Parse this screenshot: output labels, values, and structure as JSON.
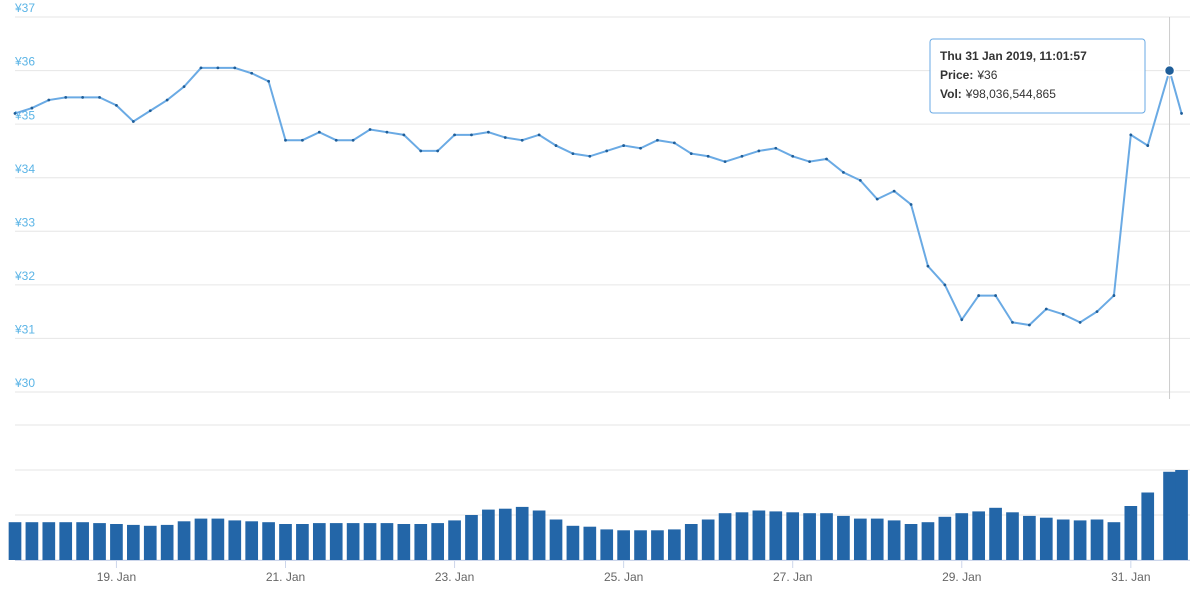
{
  "chart_data": [
    {
      "type": "line",
      "x": [
        17.8,
        18.0,
        18.2,
        18.4,
        18.6,
        18.8,
        19.0,
        19.2,
        19.4,
        19.6,
        19.8,
        20.0,
        20.2,
        20.4,
        20.6,
        20.8,
        21.0,
        21.2,
        21.4,
        21.6,
        21.8,
        22.0,
        22.2,
        22.4,
        22.6,
        22.8,
        23.0,
        23.2,
        23.4,
        23.6,
        23.8,
        24.0,
        24.2,
        24.4,
        24.6,
        24.8,
        25.0,
        25.2,
        25.4,
        25.6,
        25.8,
        26.0,
        26.2,
        26.4,
        26.6,
        26.8,
        27.0,
        27.2,
        27.4,
        27.6,
        27.8,
        28.0,
        28.2,
        28.4,
        28.6,
        28.8,
        29.0,
        29.2,
        29.4,
        29.6,
        29.8,
        30.0,
        30.2,
        30.4,
        30.6,
        30.8,
        31.0,
        31.2,
        31.458,
        31.6
      ],
      "values": [
        35.2,
        35.3,
        35.45,
        35.5,
        35.5,
        35.5,
        35.35,
        35.05,
        35.25,
        35.45,
        35.7,
        36.05,
        36.05,
        36.05,
        35.95,
        35.8,
        34.7,
        34.7,
        34.85,
        34.7,
        34.7,
        34.9,
        34.85,
        34.8,
        34.5,
        34.5,
        34.8,
        34.8,
        34.85,
        34.75,
        34.7,
        34.8,
        34.6,
        34.45,
        34.4,
        34.5,
        34.6,
        34.55,
        34.7,
        34.65,
        34.45,
        34.4,
        34.3,
        34.4,
        34.5,
        34.55,
        34.4,
        34.3,
        34.35,
        34.1,
        33.95,
        33.6,
        33.75,
        33.5,
        32.35,
        32.0,
        31.35,
        31.8,
        31.8,
        31.3,
        31.25,
        31.55,
        31.45,
        31.3,
        31.5,
        31.8,
        34.8,
        34.6,
        36,
        35.2
      ],
      "color": "#6aaae4",
      "marker_color": "#1f5e99",
      "xlim": [
        17.8,
        31.7
      ],
      "ylim": [
        30,
        37
      ],
      "yticks": [
        {
          "value": 30,
          "label": "¥30"
        },
        {
          "value": 31,
          "label": "¥31"
        },
        {
          "value": 32,
          "label": "¥32"
        },
        {
          "value": 33,
          "label": "¥33"
        },
        {
          "value": 34,
          "label": "¥34"
        },
        {
          "value": 35,
          "label": "¥35"
        },
        {
          "value": 36,
          "label": "¥36"
        },
        {
          "value": 37,
          "label": "¥37"
        }
      ],
      "grid": true,
      "tooltip": {
        "x": 31.458,
        "x_label": "Thu 31 Jan 2019, 11:01:57",
        "price_name": "Price:",
        "price": 36,
        "price_label": "¥36",
        "volume_name": "Vol:",
        "volume": 98.036544865,
        "volume_label": "¥98,036,544,865"
      }
    },
    {
      "type": "bar",
      "x": [
        17.8,
        18.0,
        18.2,
        18.4,
        18.6,
        18.8,
        19.0,
        19.2,
        19.4,
        19.6,
        19.8,
        20.0,
        20.2,
        20.4,
        20.6,
        20.8,
        21.0,
        21.2,
        21.4,
        21.6,
        21.8,
        22.0,
        22.2,
        22.4,
        22.6,
        22.8,
        23.0,
        23.2,
        23.4,
        23.6,
        23.8,
        24.0,
        24.2,
        24.4,
        24.6,
        24.8,
        25.0,
        25.2,
        25.4,
        25.6,
        25.8,
        26.0,
        26.2,
        26.4,
        26.6,
        26.8,
        27.0,
        27.2,
        27.4,
        27.6,
        27.8,
        28.0,
        28.2,
        28.4,
        28.6,
        28.8,
        29.0,
        29.2,
        29.4,
        29.6,
        29.8,
        30.0,
        30.2,
        30.4,
        30.6,
        30.8,
        31.0,
        31.2,
        31.458,
        31.6
      ],
      "values": [
        42,
        42,
        42,
        42,
        42,
        41,
        40,
        39,
        38,
        39,
        43,
        46,
        46,
        44,
        43,
        42,
        40,
        40,
        41,
        41,
        41,
        41,
        41,
        40,
        40,
        41,
        44,
        50,
        56,
        57,
        59,
        55,
        45,
        38,
        37,
        34,
        33,
        33,
        33,
        34,
        40,
        45,
        52,
        53,
        55,
        54,
        53,
        52,
        52,
        49,
        46,
        46,
        44,
        40,
        42,
        48,
        52,
        54,
        58,
        53,
        49,
        47,
        45,
        44,
        45,
        42,
        60,
        75,
        98.036544865,
        100
      ],
      "color": "#2366a8",
      "xlim": [
        17.8,
        31.7
      ],
      "ylim": [
        0,
        150
      ],
      "gridlines": [
        0,
        50,
        100,
        150
      ],
      "xticks": [
        {
          "value": 19,
          "label": "19. Jan"
        },
        {
          "value": 21,
          "label": "21. Jan"
        },
        {
          "value": 23,
          "label": "23. Jan"
        },
        {
          "value": 25,
          "label": "25. Jan"
        },
        {
          "value": 27,
          "label": "27. Jan"
        },
        {
          "value": 29,
          "label": "29. Jan"
        },
        {
          "value": 31,
          "label": "31. Jan"
        }
      ]
    }
  ]
}
